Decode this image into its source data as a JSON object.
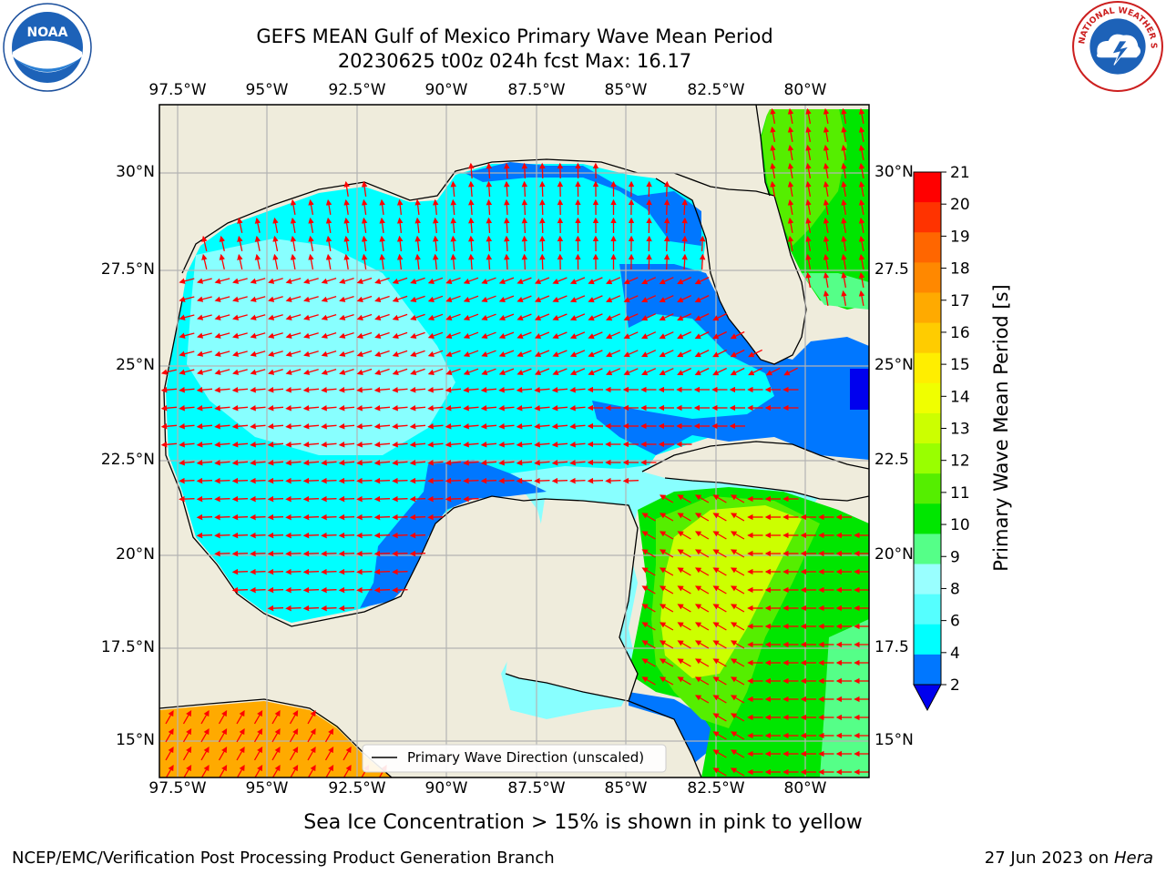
{
  "title": {
    "line1": "GEFS MEAN Gulf of Mexico Primary Wave Mean Period",
    "line2": "20230625 t00z 024h fcst   Max: 16.17"
  },
  "logos": {
    "noaa": "NOAA",
    "nws": "NATIONAL WEATHER SERVICE"
  },
  "map": {
    "lon_ticks": [
      "97.5°W",
      "95°W",
      "92.5°W",
      "90°W",
      "87.5°W",
      "85°W",
      "82.5°W",
      "80°W"
    ],
    "lat_ticks_left": [
      "30°N",
      "27.5°N",
      "25°N",
      "22.5°N",
      "20°N",
      "17.5°N",
      "15°N"
    ],
    "lat_ticks_right": [
      "30°N",
      "27.5",
      "25°N",
      "22.5",
      "20°N",
      "17.5",
      "15°N"
    ],
    "legend_label": "Primary Wave Direction (unscaled)",
    "colors": {
      "land": "#efecdc",
      "grid": "#b3b3b3",
      "arrow": "#ff0000",
      "coast": "#000000"
    }
  },
  "colorbar": {
    "label": "Primary Wave Mean Period [s]",
    "ticks": [
      "21",
      "20",
      "19",
      "18",
      "17",
      "16",
      "15",
      "14",
      "13",
      "12",
      "11",
      "10",
      "9",
      "8",
      "6",
      "4",
      "2"
    ],
    "colors": [
      "#ff0000",
      "#ff3300",
      "#ff6600",
      "#ff8800",
      "#ffaa00",
      "#ffcc00",
      "#ffee00",
      "#f0ff00",
      "#ccff00",
      "#99ff00",
      "#55ee00",
      "#00e600",
      "#55ff88",
      "#99ffff",
      "#55ffff",
      "#00ffff",
      "#0077ff"
    ],
    "extend_color": "#0000ee"
  },
  "caption": "Sea Ice Concentration > 15% is shown in pink to yellow",
  "footer": {
    "left": "NCEP/EMC/Verification Post Processing Product Generation Branch",
    "date": "27 Jun 2023 on ",
    "host": "Hera"
  }
}
